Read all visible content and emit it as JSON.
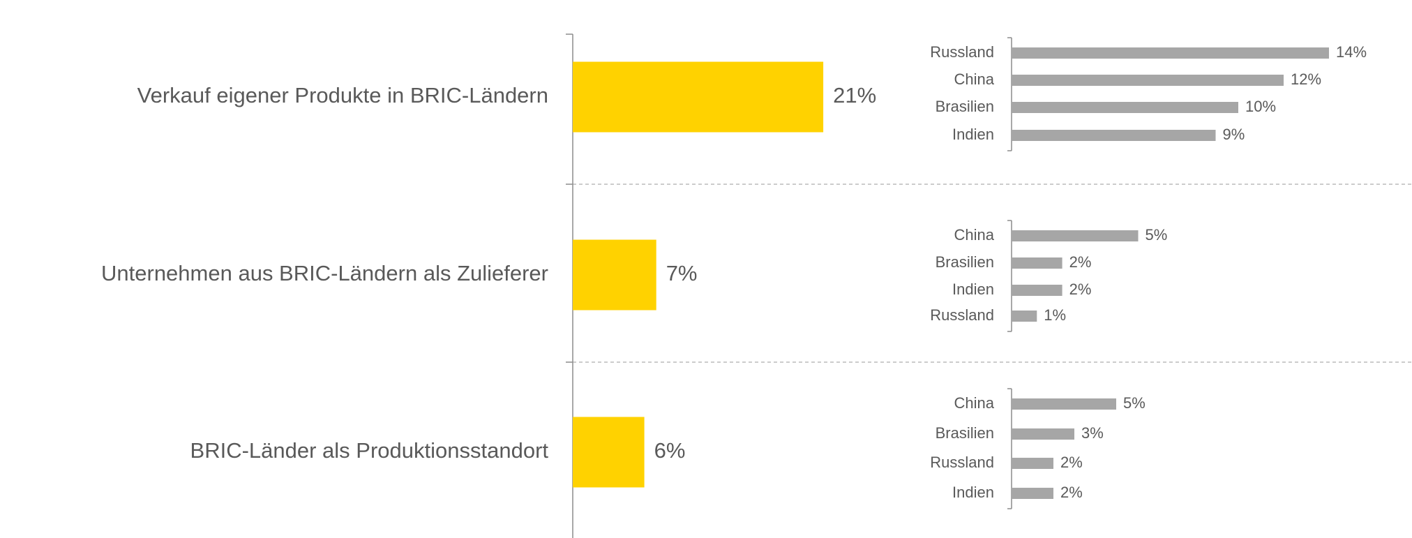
{
  "chart_data": [
    {
      "type": "bar",
      "orientation": "horizontal",
      "color": "#ffd200",
      "categories": [
        "Verkauf eigener Produkte in BRIC-Ländern",
        "Unternehmen aus BRIC-Ländern als Zulieferer",
        "BRIC-Länder als Produktionsstandort"
      ],
      "values": [
        21,
        7,
        6
      ],
      "value_labels": [
        "21%",
        "7%",
        "6%"
      ]
    },
    {
      "type": "bar",
      "orientation": "horizontal",
      "color": "#a6a6a6",
      "categories": [
        "Russland",
        "China",
        "Brasilien",
        "Indien"
      ],
      "values": [
        14,
        12,
        10,
        9
      ],
      "value_labels": [
        "14%",
        "12%",
        "10%",
        "9%"
      ]
    },
    {
      "type": "bar",
      "orientation": "horizontal",
      "color": "#a6a6a6",
      "categories": [
        "China",
        "Brasilien",
        "Indien",
        "Russland"
      ],
      "values": [
        5,
        2,
        2,
        1
      ],
      "value_labels": [
        "5%",
        "2%",
        "2%",
        "1%"
      ]
    },
    {
      "type": "bar",
      "orientation": "horizontal",
      "color": "#a6a6a6",
      "categories": [
        "China",
        "Brasilien",
        "Russland",
        "Indien"
      ],
      "values": [
        5,
        3,
        2,
        2
      ],
      "value_labels": [
        "5%",
        "3%",
        "2%",
        "2%"
      ]
    }
  ]
}
